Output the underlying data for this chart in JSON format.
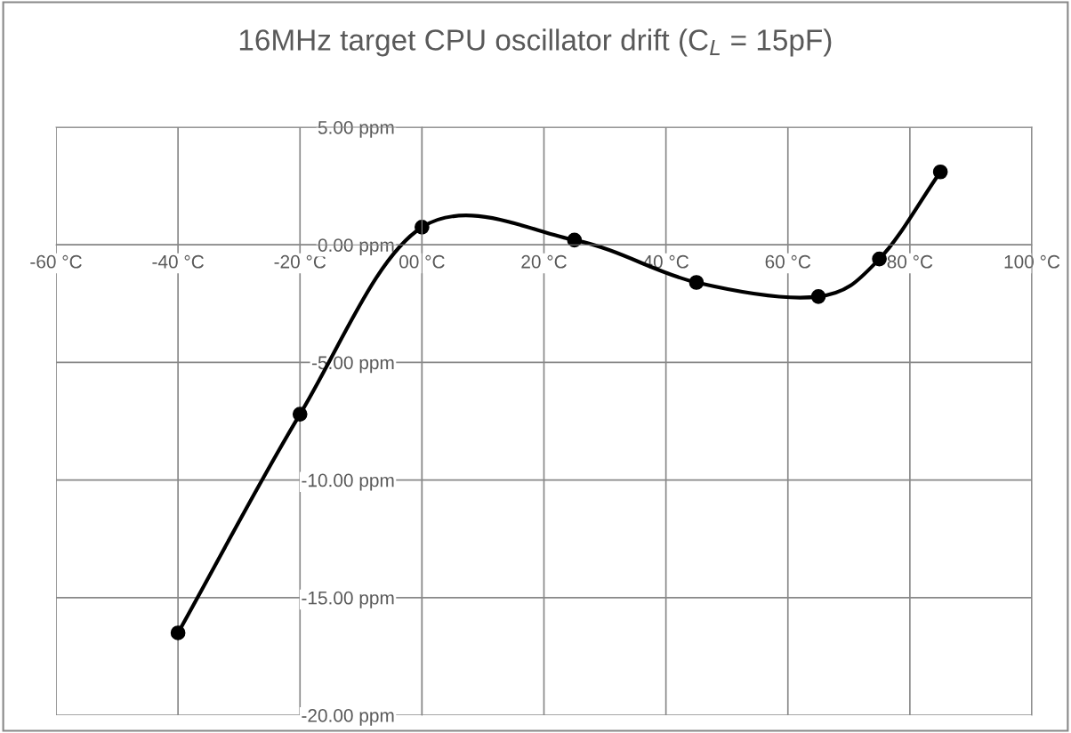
{
  "chart_data": {
    "type": "line",
    "title": "16MHz target CPU oscillator drift (C$_{L}$ = 15pF)",
    "series": [
      {
        "color": "#000000",
        "x": [
          -40,
          -20,
          0,
          25,
          45,
          65,
          75,
          85
        ],
        "values": [
          -16.5,
          -7.2,
          0.75,
          0.2,
          -1.6,
          -2.2,
          -0.6,
          3.1
        ]
      }
    ],
    "xlim": [
      -60,
      100
    ],
    "xticks": [
      {
        "value": -60,
        "label": "-60 °C"
      },
      {
        "value": -40,
        "label": "-40 °C"
      },
      {
        "value": -20,
        "label": "-20 °C"
      },
      {
        "value": 0,
        "label": "00 °C"
      },
      {
        "value": 20,
        "label": "20 °C"
      },
      {
        "value": 40,
        "label": "40 °C"
      },
      {
        "value": 60,
        "label": "60 °C"
      },
      {
        "value": 80,
        "label": "80 °C"
      },
      {
        "value": 100,
        "label": "100 °C"
      }
    ],
    "ylim": [
      -20,
      5
    ],
    "yticks": [
      {
        "value": -20,
        "label": "-20.00 ppm"
      },
      {
        "value": -15,
        "label": "-15.00 ppm"
      },
      {
        "value": -10,
        "label": "-10.00 ppm"
      },
      {
        "value": -5,
        "label": "-5.00 ppm"
      },
      {
        "value": 0,
        "label": "0.00 ppm"
      },
      {
        "value": 5,
        "label": "5.00 ppm"
      }
    ],
    "grid": true,
    "marker": "circle",
    "line_style": "solid",
    "legend": false
  }
}
